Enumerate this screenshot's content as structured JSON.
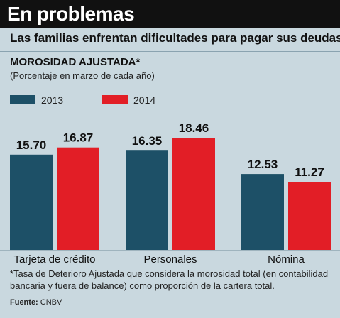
{
  "header": {
    "title": "En problemas",
    "subtitle": "Las familias enfrentan dificultades para pagar sus deudas"
  },
  "chart_data": {
    "type": "bar",
    "title": "MOROSIDAD AJUSTADA*",
    "note": "(Porcentaje en marzo de cada año)",
    "categories": [
      "Tarjeta de crédito",
      "Personales",
      "Nómina"
    ],
    "series": [
      {
        "name": "2013",
        "color": "#1d5067",
        "values": [
          15.7,
          16.35,
          12.53
        ],
        "labels": [
          "15.70",
          "16.35",
          "12.53"
        ]
      },
      {
        "name": "2014",
        "color": "#e21e26",
        "values": [
          16.87,
          18.46,
          11.27
        ],
        "labels": [
          "16.87",
          "18.46",
          "11.27"
        ]
      }
    ],
    "legend_position": "top-left",
    "grid": false
  },
  "footnote": "*Tasa de Deterioro Ajustada que considera la morosidad total (en contabilidad bancaria y fuera de balance) como proporción de la cartera total.",
  "source": {
    "label": "Fuente:",
    "text": "CNBV"
  },
  "colors": {
    "background": "#c9d8df",
    "title_bar": "#111111",
    "series_2013": "#1d5067",
    "series_2014": "#e21e26"
  }
}
